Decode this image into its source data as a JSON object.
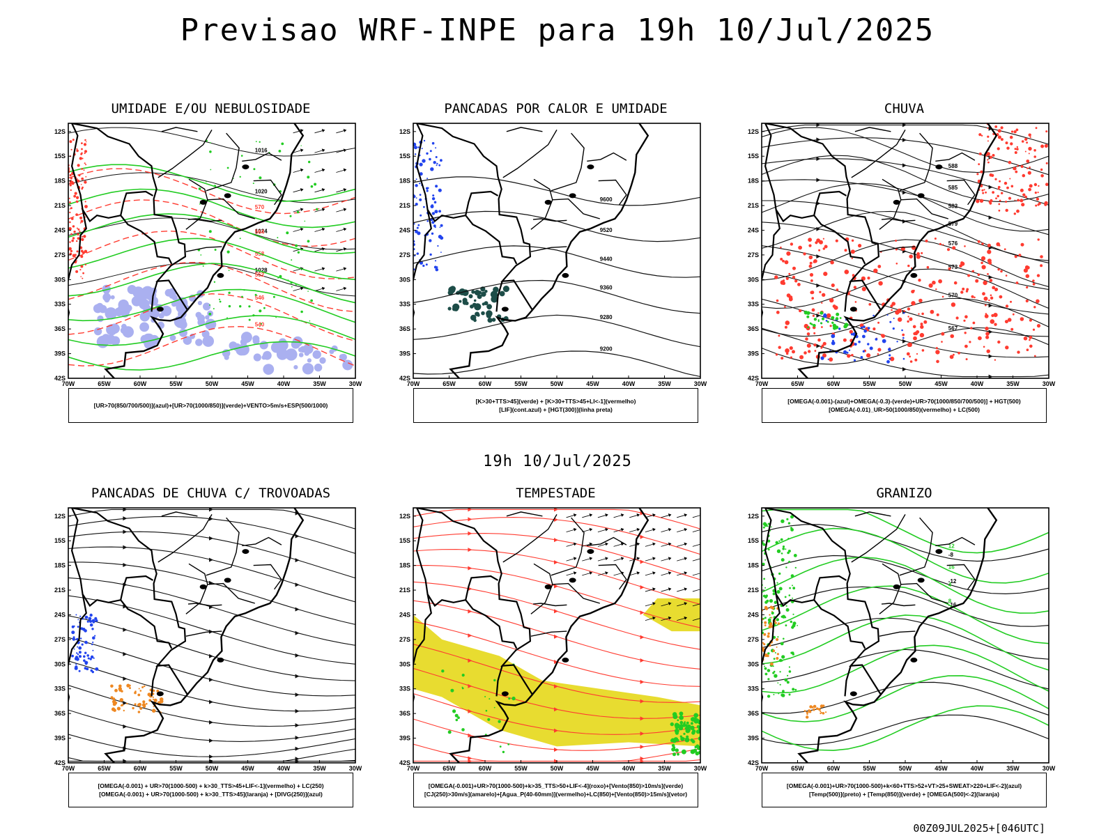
{
  "header": {
    "title": "Previsao WRF-INPE  para 19h 10/Jul/2025"
  },
  "mid_date": "19h 10/Jul/2025",
  "footer": {
    "run_code": "00Z09JUL2025+[046UTC]"
  },
  "axes": {
    "lat_labels": [
      "12S",
      "15S",
      "18S",
      "21S",
      "24S",
      "27S",
      "30S",
      "33S",
      "36S",
      "39S",
      "42S"
    ],
    "lon_labels": [
      "70W",
      "65W",
      "60W",
      "55W",
      "50W",
      "45W",
      "40W",
      "35W",
      "30W"
    ]
  },
  "panels": [
    {
      "title": "UMIDADE E/OU NEBULOSIDADE",
      "legend": [
        "[UR>70(850/700/500)](azul)+[UR>70(1000/850)](verde)+VENTO>5m/s+ESP(500/1000)"
      ],
      "contour_labels": [
        "1016",
        "1020",
        "1024",
        "1028",
        "1032",
        "570",
        "564",
        "558",
        "552",
        "546",
        "540"
      ]
    },
    {
      "title": "PANCADAS POR CALOR E UMIDADE",
      "legend": [
        "[K>30+TTS>45](verde) + [K>30+TTS>45+LI<-1](vermelho)",
        "[LIF](cont.azul) + [HGT(300)](linha preta)"
      ],
      "contour_labels": [
        "9600",
        "9520",
        "9440",
        "9360",
        "9280",
        "9200"
      ]
    },
    {
      "title": "CHUVA",
      "legend": [
        "[OMEGA(-0.001)-(azul)+OMEGA(-0.3)-(verde)+UR>70(1000/850/700/500)] + HGT(500)",
        "[OMEGA(-0.01)_UR>50(1000/850)(vermelho) + LC(500)"
      ],
      "contour_labels": [
        "588",
        "585",
        "582",
        "579",
        "576",
        "573",
        "570",
        "567"
      ]
    },
    {
      "title": "PANCADAS DE CHUVA C/ TROVOADAS",
      "legend": [
        "[OMEGA(-0.001) + UR>70(1000-500) + k>30_TTS>45+LIF<-1](vermelho) + LC(250)",
        "[OMEGA(-0.001) + UR>70(1000-500) + k>30_TTS>45](laranja) + [DIVG(250)](azul)"
      ],
      "contour_labels": []
    },
    {
      "title": "TEMPESTADE",
      "legend": [
        "[OMEGA(-0.001)+UR>70(1000-500)+k>35_TTS>50+LIF<-4](roxo)+[Vento(850)>10m/s](verde)",
        "[CJ(250)>30m/s](amarelo)+[Agua_P(40-60mm)](vermelho)+LC(850)+[Vento(850)>15m/s](vetor)"
      ],
      "contour_labels": []
    },
    {
      "title": "GRANIZO",
      "legend": [
        "[OMEGA(-0.001)+UR>70(1000-500)+k<60+TTS>52+VT>25+SWEAT>220+LIF<-2](azul)",
        "[Temp(500)](preto) + [Temp(850)](verde) + [OMEGA(500)<-2](laranja)"
      ],
      "contour_labels": [
        "-8",
        "-12",
        "-16",
        "12",
        "16",
        "4",
        "8"
      ]
    }
  ],
  "colors": {
    "red": "#ff3b30",
    "green": "#22cc22",
    "blue": "#2244ee",
    "lavender": "#aab0f0",
    "yellow": "#e8dc30",
    "orange": "#ee8822",
    "darkteal": "#1d4d48"
  }
}
